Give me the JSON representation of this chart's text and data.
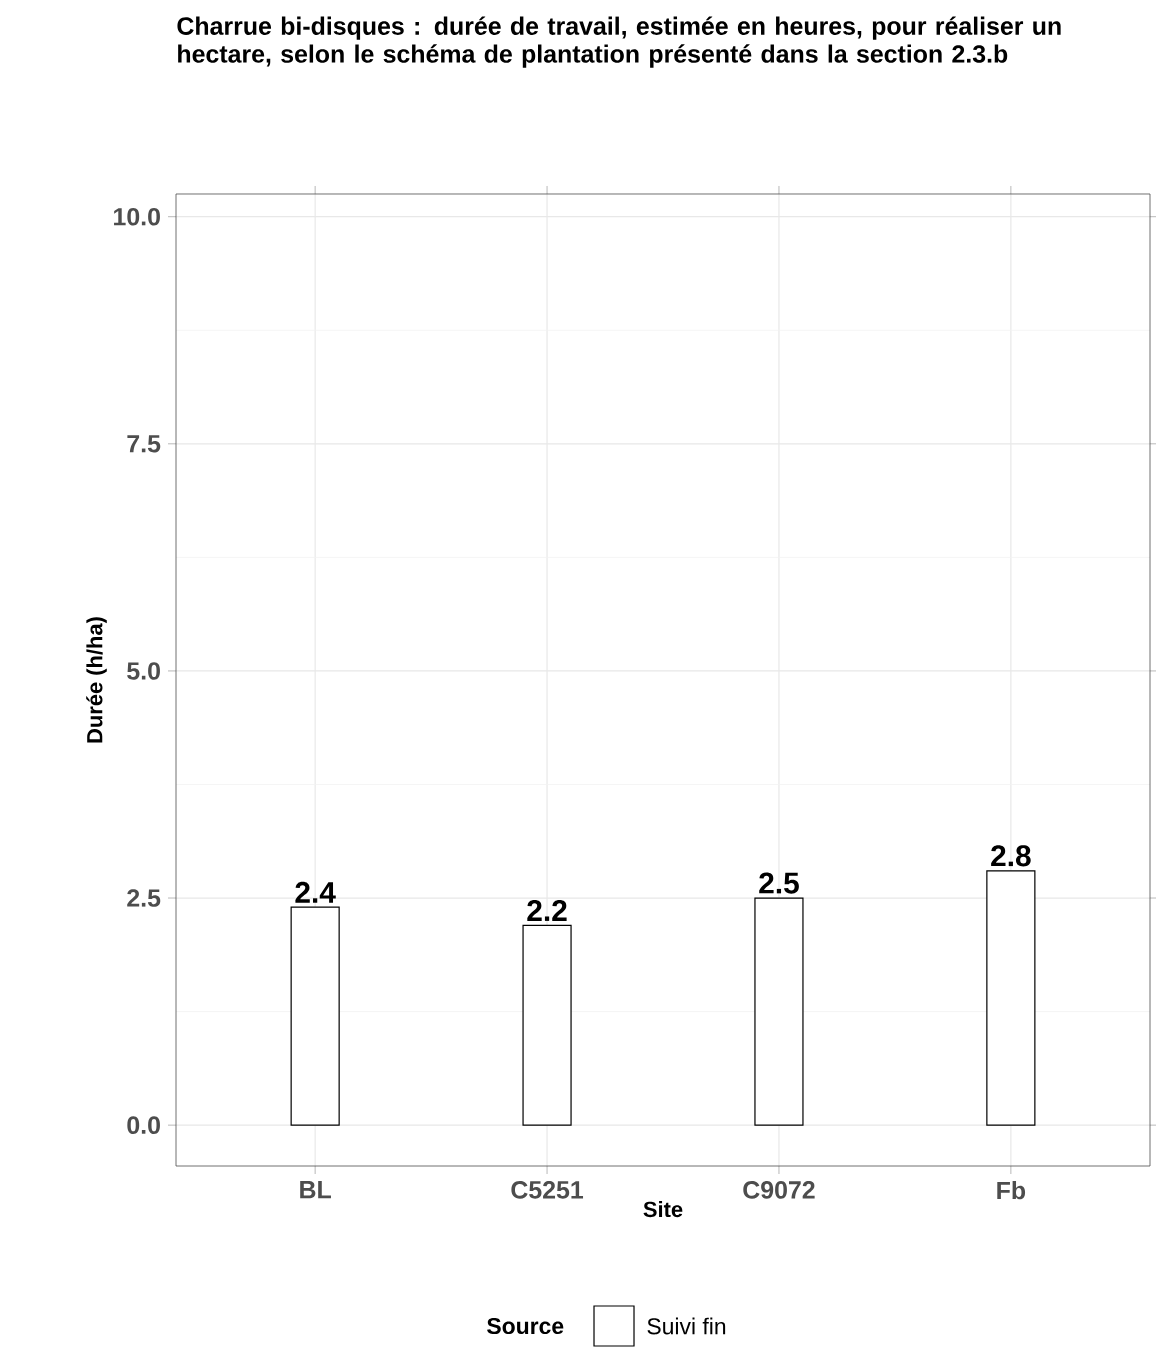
{
  "chart_data": {
    "type": "bar",
    "title": "Charrue bi-disques : durée de travail, estimée en heures, pour réaliser un hectare, selon le schéma de plantation présenté dans la section 2.3.b",
    "xlabel": "Site",
    "ylabel": "Durée (h/ha)",
    "legend_title": "Source",
    "categories": [
      "BL",
      "C5251",
      "C9072",
      "Fb"
    ],
    "series": [
      {
        "name": "Suivi fin",
        "color": "#ffffff",
        "values": [
          2.4,
          2.2,
          2.5,
          2.8
        ]
      }
    ],
    "ylim": [
      -0.45,
      10.25
    ],
    "yticks": [
      {
        "value": 0,
        "label": "0.0"
      },
      2.5,
      {
        "value": 5,
        "label": "5.0"
      },
      7.5,
      {
        "value": 10,
        "label": "10.0"
      }
    ],
    "grid": true,
    "legend": "bottom",
    "data_labels": true
  }
}
